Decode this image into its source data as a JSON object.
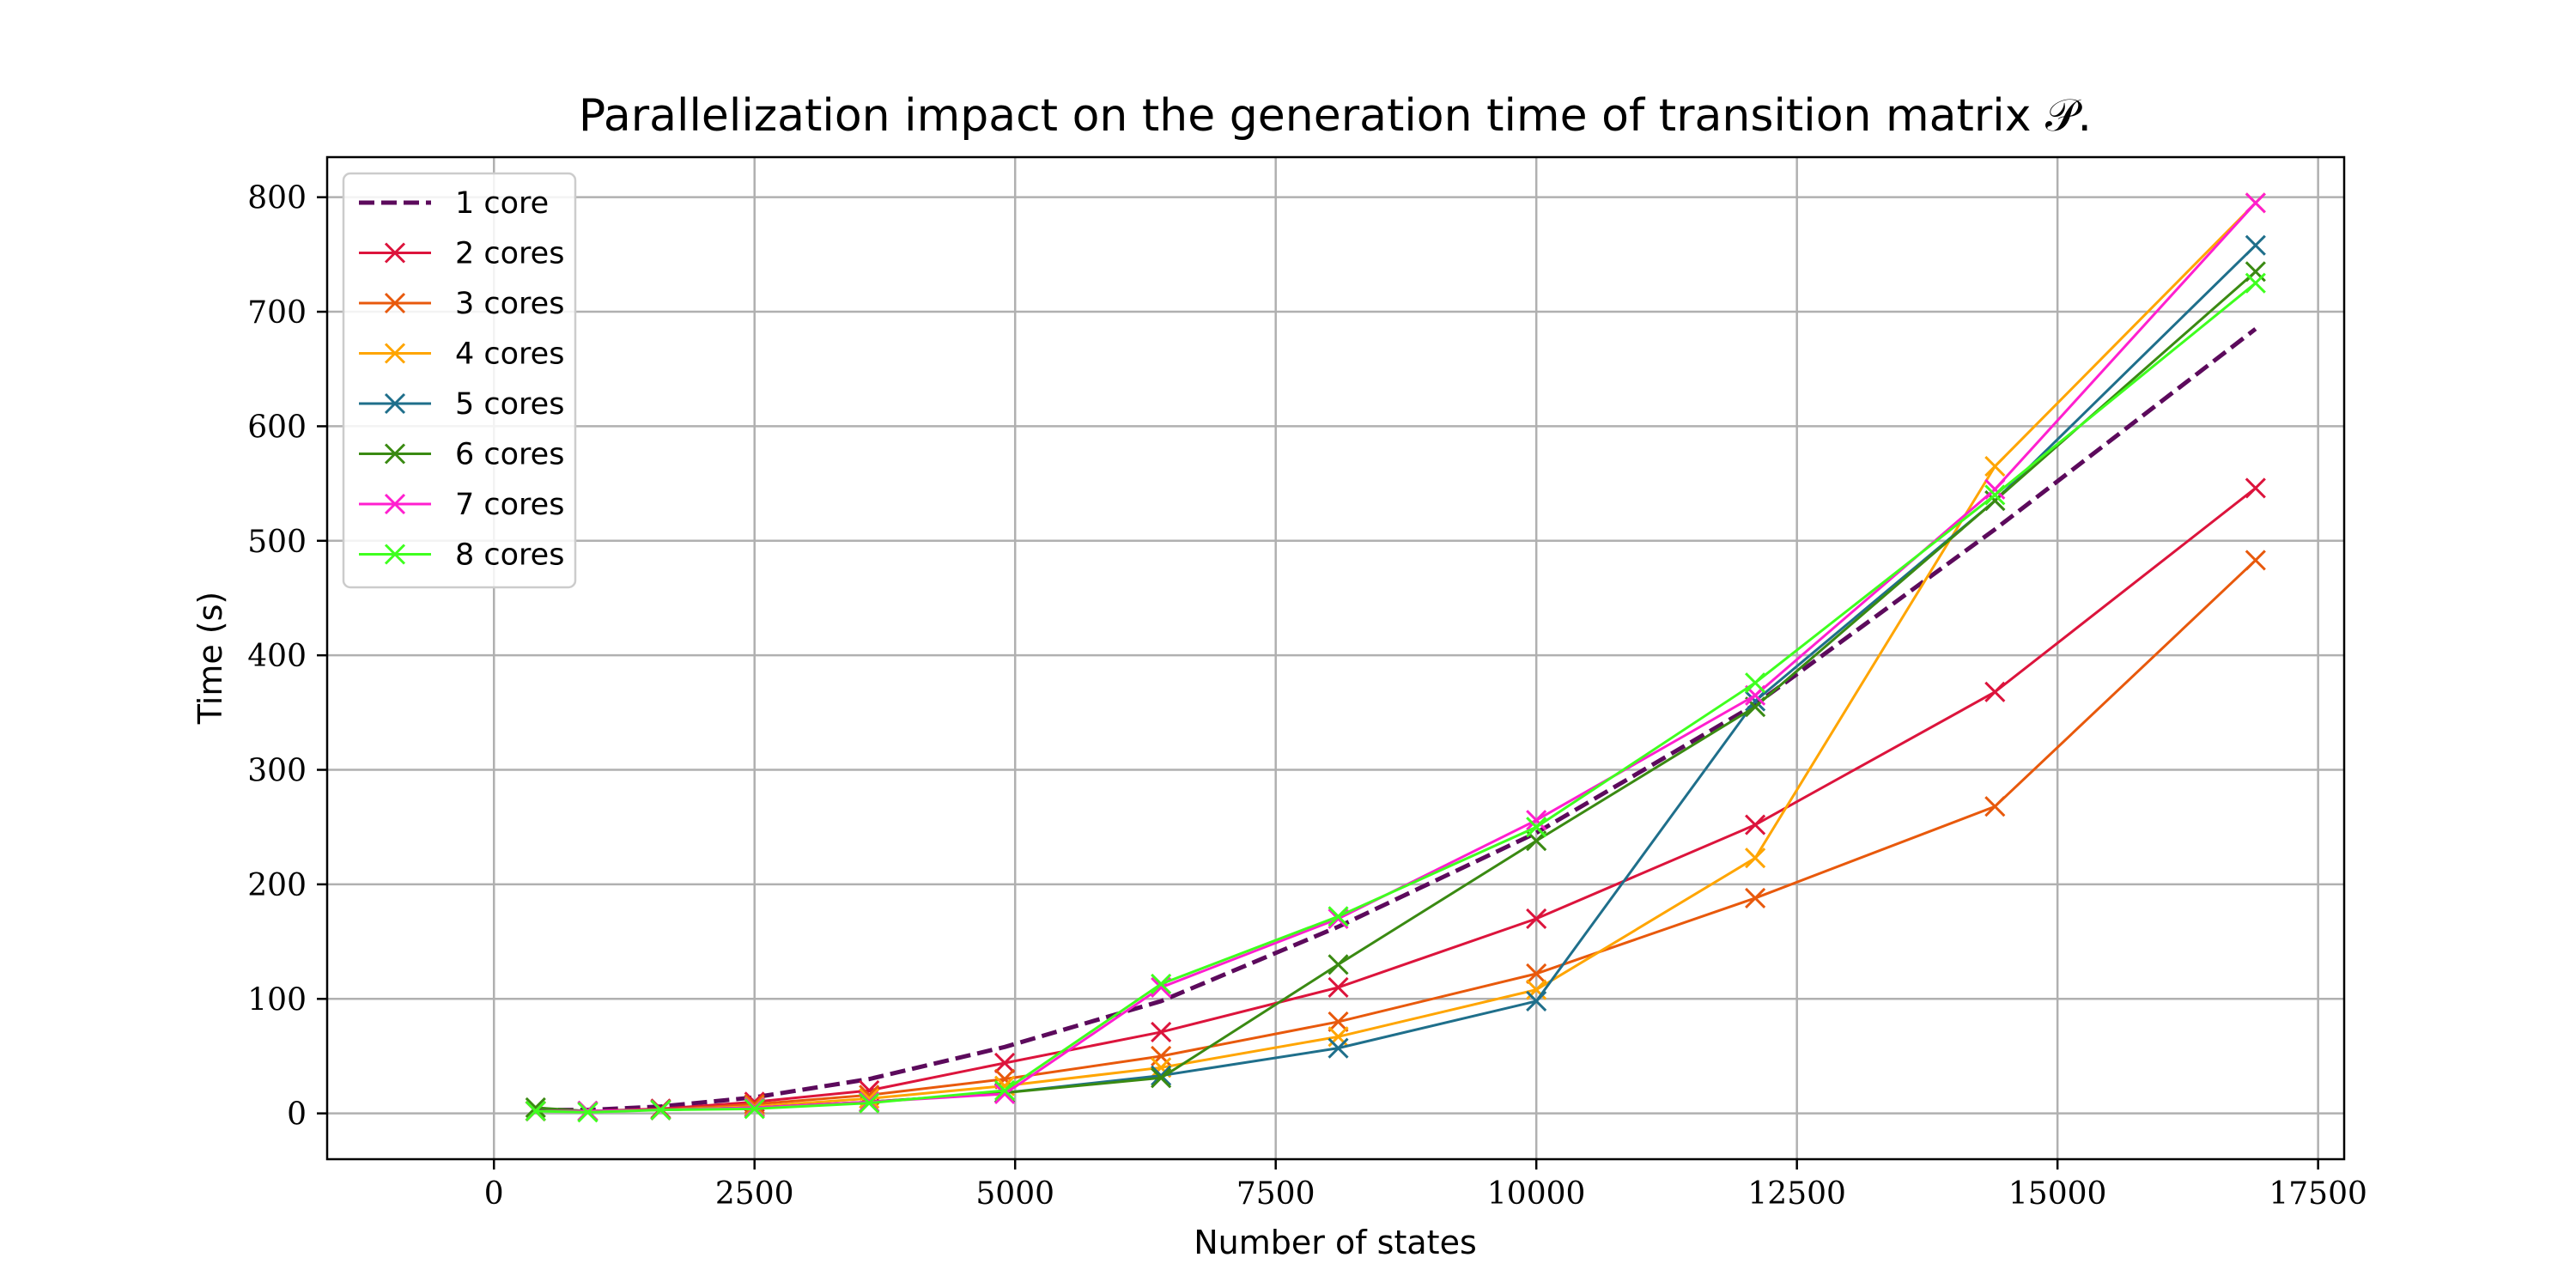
{
  "chart_data": {
    "type": "line",
    "title": "Parallelization impact on the generation time of transition matrix 𝒫.",
    "xlabel": "Number of states",
    "ylabel": "Time (s)",
    "xlim": [
      -1600,
      17750
    ],
    "ylim": [
      -40,
      835
    ],
    "xticks": [
      0,
      2500,
      5000,
      7500,
      10000,
      12500,
      15000,
      17500
    ],
    "yticks": [
      0,
      100,
      200,
      300,
      400,
      500,
      600,
      700,
      800
    ],
    "grid": true,
    "legend_position": "top-left",
    "x": [
      400,
      900,
      1600,
      2500,
      3600,
      4900,
      6400,
      8100,
      10000,
      12100,
      14400,
      16900
    ],
    "series": [
      {
        "name": "1 core",
        "color": "#5c0a5c",
        "style": "dashed",
        "marker": "none",
        "values": [
          3,
          3,
          6,
          14,
          30,
          58,
          98,
          163,
          245,
          357,
          510,
          685
        ]
      },
      {
        "name": "2 cores",
        "color": "#dc143c",
        "style": "solid",
        "marker": "x",
        "values": [
          2,
          2,
          4,
          10,
          20,
          44,
          71,
          110,
          170,
          252,
          368,
          546
        ]
      },
      {
        "name": "3 cores",
        "color": "#e8590c",
        "style": "solid",
        "marker": "x",
        "values": [
          2,
          2,
          3,
          8,
          16,
          30,
          50,
          80,
          122,
          188,
          268,
          483
        ]
      },
      {
        "name": "4 cores",
        "color": "#ffa500",
        "style": "solid",
        "marker": "x",
        "values": [
          2,
          2,
          3,
          6,
          13,
          24,
          40,
          67,
          108,
          223,
          565,
          795
        ]
      },
      {
        "name": "5 cores",
        "color": "#1f6f8b",
        "style": "solid",
        "marker": "x",
        "values": [
          2,
          2,
          3,
          5,
          10,
          18,
          33,
          57,
          98,
          360,
          535,
          758
        ]
      },
      {
        "name": "6 cores",
        "color": "#3a8a12",
        "style": "solid",
        "marker": "x",
        "values": [
          5,
          2,
          3,
          5,
          10,
          18,
          31,
          130,
          238,
          355,
          535,
          735
        ]
      },
      {
        "name": "7 cores",
        "color": "#ff1fcf",
        "style": "solid",
        "marker": "x",
        "values": [
          2,
          2,
          3,
          5,
          10,
          17,
          110,
          170,
          256,
          365,
          545,
          795
        ]
      },
      {
        "name": "8 cores",
        "color": "#3fff1f",
        "style": "solid",
        "marker": "x",
        "values": [
          2,
          1,
          3,
          4,
          9,
          20,
          113,
          172,
          250,
          376,
          540,
          725
        ]
      }
    ]
  }
}
